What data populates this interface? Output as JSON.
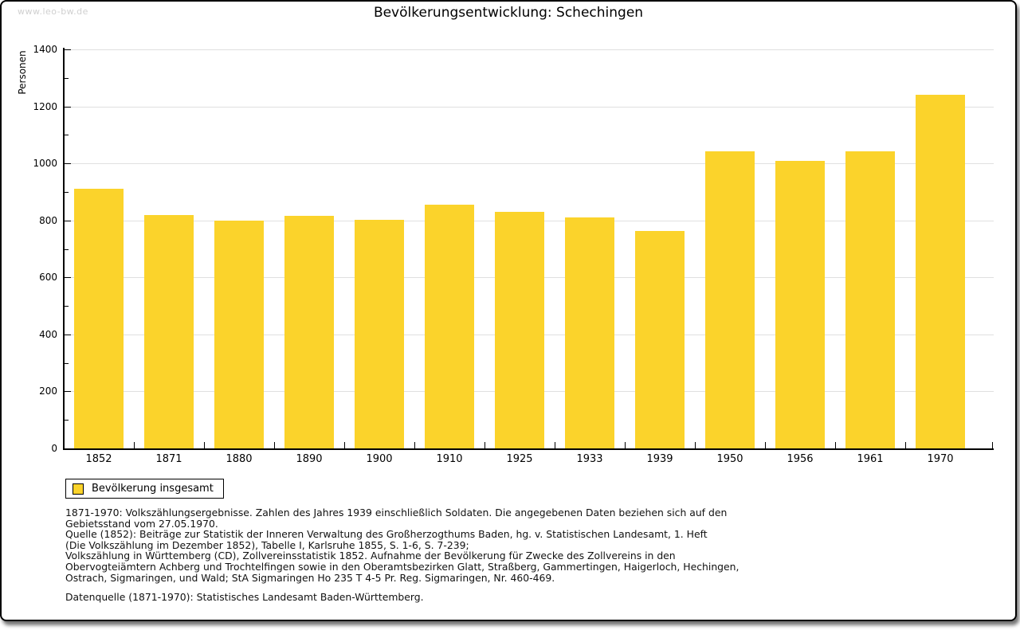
{
  "watermark": "www.leo-bw.de",
  "title": "Bevölkerungsentwicklung: Schechingen",
  "legend": {
    "label": "Bevölkerung insgesamt"
  },
  "colors": {
    "bar": "#FBD32B",
    "grid": "#E0E0E0",
    "axis": "#000000",
    "watermark": "#D0D0D0"
  },
  "chart_data": {
    "type": "bar",
    "title": "Bevölkerungsentwicklung: Schechingen",
    "xlabel": "",
    "ylabel": "Personen",
    "ylim": [
      0,
      1400
    ],
    "ytick_step": 200,
    "yminor_step": 100,
    "grid": true,
    "legend_position": "bottom-left",
    "series_name": "Bevölkerung insgesamt",
    "categories": [
      "1852",
      "1871",
      "1880",
      "1890",
      "1900",
      "1910",
      "1925",
      "1933",
      "1939",
      "1950",
      "1956",
      "1961",
      "1970"
    ],
    "values": [
      912,
      820,
      798,
      817,
      801,
      855,
      831,
      810,
      763,
      1042,
      1010,
      1042,
      1242
    ]
  },
  "footer": {
    "lines": [
      "1871-1970: Volkszählungsergebnisse. Zahlen des Jahres 1939 einschließlich Soldaten. Die angegebenen Daten beziehen sich auf den",
      "Gebietsstand vom 27.05.1970.",
      "Quelle (1852): Beiträge zur Statistik der Inneren Verwaltung des Großherzogthums Baden, hg. v. Statistischen Landesamt, 1. Heft",
      "(Die Volkszählung im Dezember 1852), Tabelle I, Karlsruhe 1855, S. 1-6, S. 7-239;",
      "Volkszählung in Württemberg (CD), Zollvereinsstatistik 1852. Aufnahme der Bevölkerung für Zwecke des Zollvereins in den",
      "Obervogteiämtern Achberg und Trochtelfingen sowie in den Oberamtsbezirken Glatt, Straßberg, Gammertingen, Haigerloch, Hechingen,",
      "Ostrach, Sigmaringen, und Wald; StA Sigmaringen Ho 235 T 4-5 Pr. Reg. Sigmaringen, Nr. 460-469."
    ],
    "datenquelle": "Datenquelle (1871-1970): Statistisches Landesamt Baden-Württemberg."
  }
}
